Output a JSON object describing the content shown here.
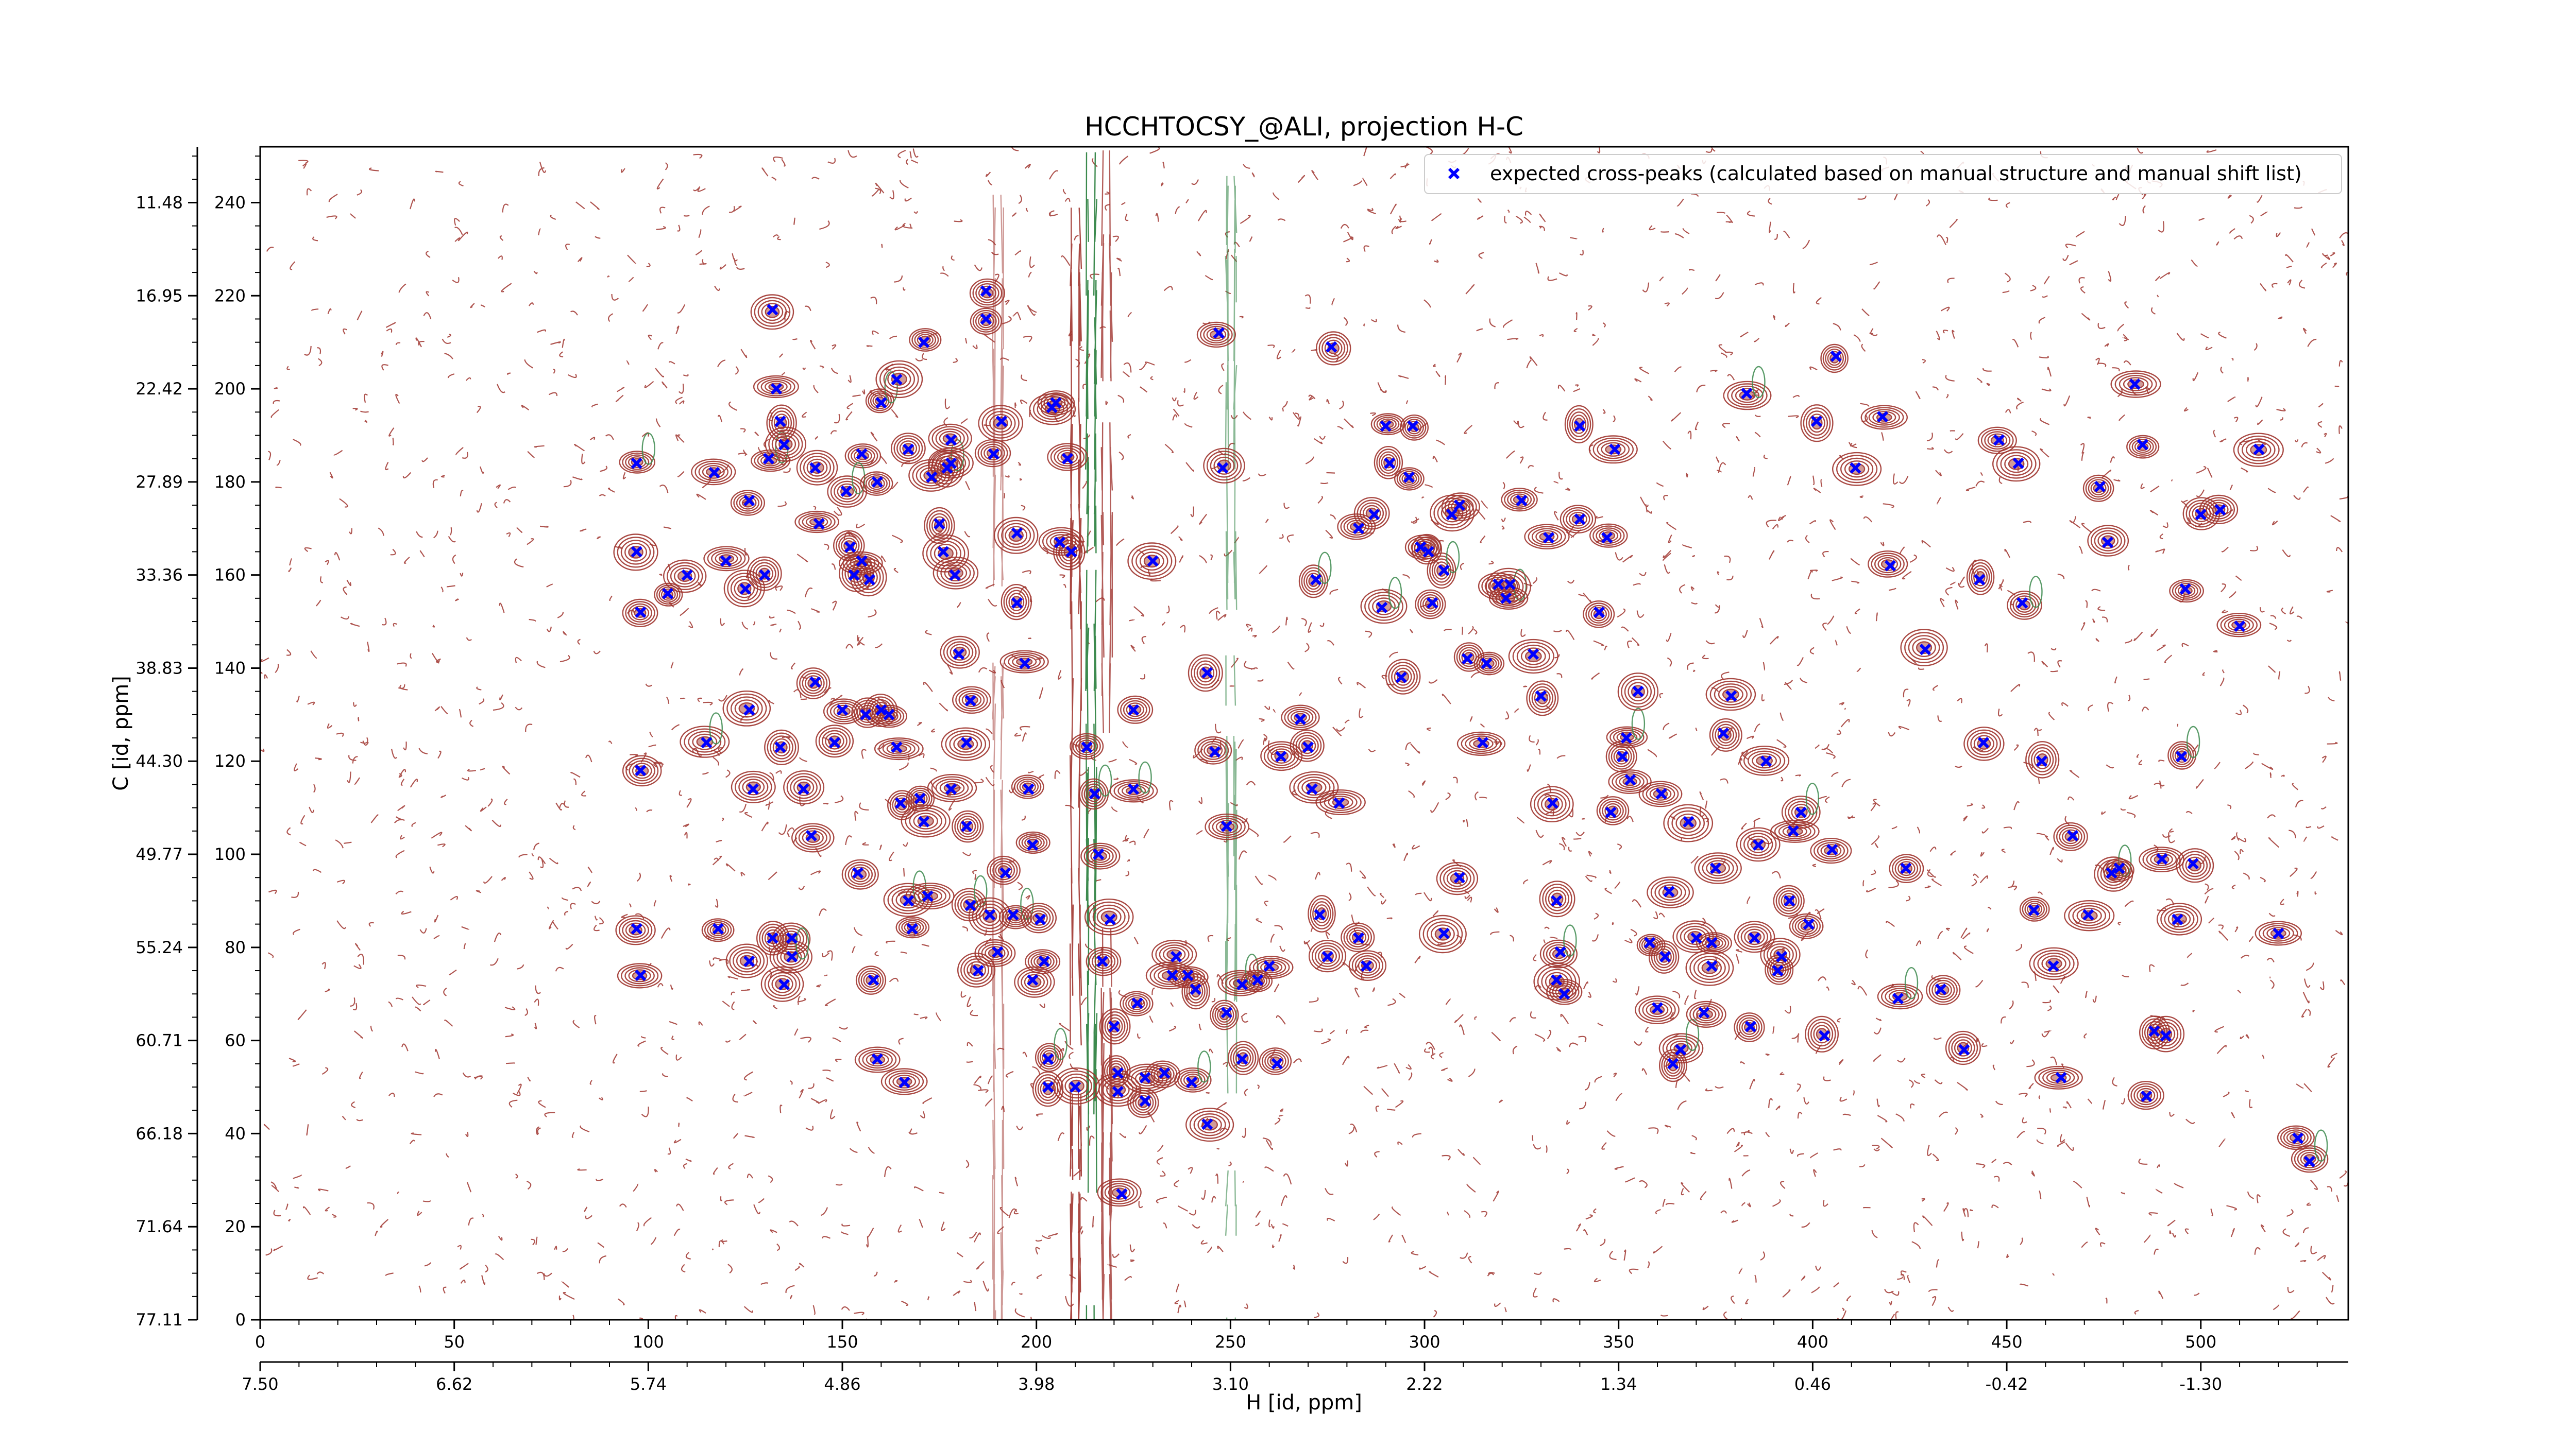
{
  "chart_data": {
    "type": "scatter",
    "title": "HCCHTOCSY_@ALI, projection H-C",
    "xlabel": "H [id, ppm]",
    "ylabel": "C [id, ppm]",
    "x_index_ticks": [
      "0",
      "50",
      "100",
      "150",
      "200",
      "250",
      "300",
      "350",
      "400",
      "450",
      "500"
    ],
    "x_ppm_ticks": [
      "7.50",
      "6.62",
      "5.74",
      "4.86",
      "3.98",
      "3.10",
      "2.22",
      "1.34",
      "0.46",
      "-0.42",
      "-1.30"
    ],
    "y_index_ticks": [
      "0",
      "20",
      "40",
      "60",
      "80",
      "100",
      "120",
      "140",
      "160",
      "180",
      "200",
      "220",
      "240"
    ],
    "y_ppm_ticks": [
      "77.11",
      "71.64",
      "66.18",
      "60.71",
      "55.24",
      "49.77",
      "44.30",
      "38.83",
      "33.36",
      "27.89",
      "22.42",
      "16.95",
      "11.48"
    ],
    "xlim": [
      0,
      538
    ],
    "ylim": [
      0,
      252
    ],
    "grid": false,
    "legend_position": "top-right",
    "colors": {
      "positive_contours": "#a0352f",
      "negative_contours": "#3c8a4e",
      "markers": "#0000ff"
    },
    "series": [
      {
        "name": "expected cross-peaks (calculated based on manual structure and manual shift list)",
        "marker": "x",
        "color": "#0000ff",
        "points": [
          [
            97,
            184
          ],
          [
            97,
            165
          ],
          [
            98,
            152
          ],
          [
            98,
            118
          ],
          [
            97,
            84
          ],
          [
            98,
            74
          ],
          [
            105,
            156
          ],
          [
            110,
            160
          ],
          [
            117,
            182
          ],
          [
            115,
            124
          ],
          [
            118,
            84
          ],
          [
            120,
            163
          ],
          [
            126,
            176
          ],
          [
            126,
            77
          ],
          [
            125,
            157
          ],
          [
            126,
            131
          ],
          [
            127,
            114
          ],
          [
            130,
            160
          ],
          [
            131,
            185
          ],
          [
            132,
            82
          ],
          [
            132,
            217
          ],
          [
            135,
            72
          ],
          [
            133,
            200
          ],
          [
            134,
            193
          ],
          [
            135,
            188
          ],
          [
            134,
            123
          ],
          [
            137,
            82
          ],
          [
            137,
            78
          ],
          [
            140,
            114
          ],
          [
            143,
            183
          ],
          [
            144,
            171
          ],
          [
            142,
            104
          ],
          [
            143,
            137
          ],
          [
            148,
            124
          ],
          [
            150,
            131
          ],
          [
            155,
            186
          ],
          [
            151,
            178
          ],
          [
            152,
            166
          ],
          [
            155,
            163
          ],
          [
            153,
            160
          ],
          [
            157,
            159
          ],
          [
            156,
            130
          ],
          [
            154,
            96
          ],
          [
            158,
            73
          ],
          [
            159,
            56
          ],
          [
            160,
            197
          ],
          [
            159,
            180
          ],
          [
            160,
            131
          ],
          [
            162,
            130
          ],
          [
            164,
            123
          ],
          [
            164,
            202
          ],
          [
            165,
            111
          ],
          [
            167,
            187
          ],
          [
            166,
            51
          ],
          [
            167,
            90
          ],
          [
            168,
            84
          ],
          [
            171,
            210
          ],
          [
            170,
            112
          ],
          [
            171,
            107
          ],
          [
            172,
            91
          ],
          [
            173,
            181
          ],
          [
            175,
            171
          ],
          [
            176,
            165
          ],
          [
            177,
            183
          ],
          [
            178,
            189
          ],
          [
            178,
            184
          ],
          [
            178,
            114
          ],
          [
            179,
            160
          ],
          [
            180,
            143
          ],
          [
            183,
            133
          ],
          [
            182,
            124
          ],
          [
            182,
            106
          ],
          [
            183,
            89
          ],
          [
            185,
            75
          ],
          [
            187,
            221
          ],
          [
            187,
            215
          ],
          [
            188,
            87
          ],
          [
            189,
            186
          ],
          [
            190,
            79
          ],
          [
            191,
            193
          ],
          [
            192,
            96
          ],
          [
            194,
            87
          ],
          [
            195,
            169
          ],
          [
            195,
            154
          ],
          [
            197,
            141
          ],
          [
            198,
            114
          ],
          [
            199,
            102
          ],
          [
            199,
            73
          ],
          [
            201,
            86
          ],
          [
            202,
            77
          ],
          [
            203,
            56
          ],
          [
            203,
            50
          ],
          [
            204,
            196
          ],
          [
            205,
            197
          ],
          [
            206,
            167
          ],
          [
            208,
            185
          ],
          [
            209,
            165
          ],
          [
            210,
            50
          ],
          [
            213,
            123
          ],
          [
            215,
            113
          ],
          [
            216,
            100
          ],
          [
            217,
            77
          ],
          [
            219,
            86
          ],
          [
            220,
            63
          ],
          [
            221,
            53
          ],
          [
            221,
            49
          ],
          [
            222,
            27
          ],
          [
            225,
            131
          ],
          [
            225,
            114
          ],
          [
            226,
            68
          ],
          [
            228,
            52
          ],
          [
            228,
            47
          ],
          [
            230,
            163
          ],
          [
            233,
            53
          ],
          [
            235,
            74
          ],
          [
            236,
            78
          ],
          [
            239,
            74
          ],
          [
            240,
            51
          ],
          [
            241,
            71
          ],
          [
            244,
            42
          ],
          [
            247,
            212
          ],
          [
            244,
            139
          ],
          [
            246,
            122
          ],
          [
            248,
            183
          ],
          [
            249,
            106
          ],
          [
            249,
            66
          ],
          [
            253,
            72
          ],
          [
            253,
            56
          ],
          [
            257,
            73
          ],
          [
            260,
            76
          ],
          [
            262,
            55
          ],
          [
            263,
            121
          ],
          [
            268,
            129
          ],
          [
            270,
            123
          ],
          [
            271,
            114
          ],
          [
            272,
            159
          ],
          [
            273,
            87
          ],
          [
            275,
            78
          ],
          [
            276,
            209
          ],
          [
            278,
            111
          ],
          [
            283,
            170
          ],
          [
            283,
            82
          ],
          [
            285,
            76
          ],
          [
            287,
            173
          ],
          [
            289,
            153
          ],
          [
            290,
            192
          ],
          [
            291,
            184
          ],
          [
            294,
            138
          ],
          [
            296,
            181
          ],
          [
            297,
            192
          ],
          [
            299,
            166
          ],
          [
            301,
            165
          ],
          [
            302,
            154
          ],
          [
            305,
            161
          ],
          [
            305,
            83
          ],
          [
            307,
            173
          ],
          [
            309,
            175
          ],
          [
            309,
            95
          ],
          [
            311,
            142
          ],
          [
            315,
            124
          ],
          [
            316,
            141
          ],
          [
            319,
            158
          ],
          [
            321,
            155
          ],
          [
            322,
            158
          ],
          [
            325,
            176
          ],
          [
            328,
            143
          ],
          [
            330,
            134
          ],
          [
            332,
            168
          ],
          [
            333,
            111
          ],
          [
            334,
            90
          ],
          [
            334,
            73
          ],
          [
            335,
            79
          ],
          [
            336,
            70
          ],
          [
            340,
            192
          ],
          [
            340,
            172
          ],
          [
            345,
            152
          ],
          [
            347,
            168
          ],
          [
            348,
            109
          ],
          [
            349,
            187
          ],
          [
            351,
            121
          ],
          [
            352,
            125
          ],
          [
            353,
            116
          ],
          [
            355,
            135
          ],
          [
            358,
            81
          ],
          [
            360,
            67
          ],
          [
            361,
            113
          ],
          [
            362,
            78
          ],
          [
            363,
            92
          ],
          [
            364,
            55
          ],
          [
            366,
            58
          ],
          [
            368,
            107
          ],
          [
            370,
            82
          ],
          [
            372,
            66
          ],
          [
            374,
            81
          ],
          [
            374,
            76
          ],
          [
            375,
            97
          ],
          [
            377,
            126
          ],
          [
            379,
            134
          ],
          [
            383,
            199
          ],
          [
            384,
            63
          ],
          [
            385,
            82
          ],
          [
            386,
            102
          ],
          [
            388,
            120
          ],
          [
            391,
            75
          ],
          [
            392,
            78
          ],
          [
            394,
            90
          ],
          [
            395,
            105
          ],
          [
            397,
            109
          ],
          [
            399,
            85
          ],
          [
            401,
            193
          ],
          [
            403,
            61
          ],
          [
            405,
            101
          ],
          [
            406,
            207
          ],
          [
            411,
            183
          ],
          [
            418,
            194
          ],
          [
            420,
            162
          ],
          [
            422,
            69
          ],
          [
            424,
            97
          ],
          [
            429,
            144
          ],
          [
            433,
            71
          ],
          [
            439,
            58
          ],
          [
            443,
            159
          ],
          [
            444,
            124
          ],
          [
            448,
            189
          ],
          [
            453,
            184
          ],
          [
            454,
            154
          ],
          [
            457,
            88
          ],
          [
            459,
            120
          ],
          [
            462,
            76
          ],
          [
            464,
            52
          ],
          [
            467,
            104
          ],
          [
            471,
            87
          ],
          [
            474,
            179
          ],
          [
            476,
            167
          ],
          [
            477,
            96
          ],
          [
            479,
            97
          ],
          [
            483,
            201
          ],
          [
            485,
            188
          ],
          [
            486,
            48
          ],
          [
            488,
            62
          ],
          [
            490,
            99
          ],
          [
            491,
            61
          ],
          [
            494,
            86
          ],
          [
            495,
            121
          ],
          [
            496,
            157
          ],
          [
            498,
            98
          ],
          [
            500,
            173
          ],
          [
            505,
            174
          ],
          [
            510,
            149
          ],
          [
            515,
            187
          ],
          [
            520,
            83
          ],
          [
            525,
            39
          ],
          [
            528,
            34
          ]
        ]
      }
    ]
  }
}
